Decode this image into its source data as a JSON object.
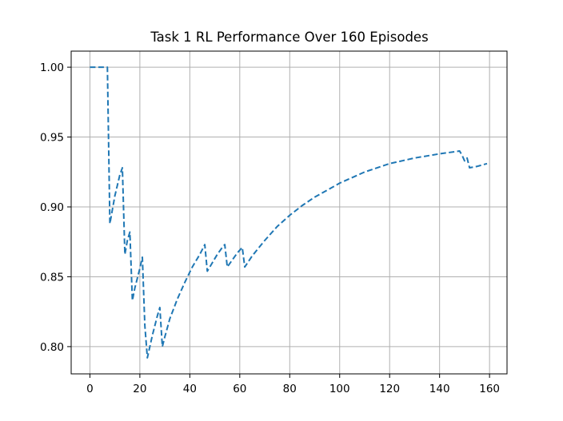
{
  "chart_data": {
    "type": "line",
    "title": "Task 1 RL Performance Over 160 Episodes",
    "xlabel": "",
    "ylabel": "",
    "xlim": [
      -7.5,
      167
    ],
    "ylim": [
      0.7805,
      1.0115
    ],
    "grid": true,
    "xticks": [
      0,
      20,
      40,
      60,
      80,
      100,
      120,
      140,
      160
    ],
    "yticks": [
      0.8,
      0.85,
      0.9,
      0.95,
      1.0
    ],
    "ytick_labels": [
      "0.80",
      "0.85",
      "0.90",
      "0.95",
      "1.00"
    ],
    "series": [
      {
        "color": "#1f77b4",
        "linestyle": "dashed",
        "x": [
          0,
          7,
          8,
          10,
          12,
          13,
          14,
          15,
          16,
          17,
          18,
          20,
          21,
          22,
          23,
          25,
          27,
          28,
          29,
          30,
          32,
          35,
          38,
          41,
          44,
          46,
          47,
          49,
          51,
          53,
          54,
          55,
          57,
          59,
          61,
          62,
          65,
          70,
          75,
          80,
          85,
          90,
          95,
          100,
          110,
          120,
          130,
          140,
          148,
          149,
          150,
          151,
          152,
          155,
          159
        ],
        "y": [
          1.0,
          1.0,
          0.888,
          0.908,
          0.923,
          0.928,
          0.866,
          0.876,
          0.882,
          0.833,
          0.842,
          0.856,
          0.864,
          0.815,
          0.792,
          0.808,
          0.822,
          0.828,
          0.8,
          0.807,
          0.82,
          0.834,
          0.846,
          0.857,
          0.866,
          0.873,
          0.854,
          0.86,
          0.866,
          0.871,
          0.873,
          0.857,
          0.862,
          0.867,
          0.871,
          0.857,
          0.865,
          0.876,
          0.886,
          0.894,
          0.901,
          0.907,
          0.912,
          0.917,
          0.925,
          0.931,
          0.935,
          0.938,
          0.94,
          0.937,
          0.933,
          0.935,
          0.928,
          0.929,
          0.931
        ]
      }
    ]
  }
}
